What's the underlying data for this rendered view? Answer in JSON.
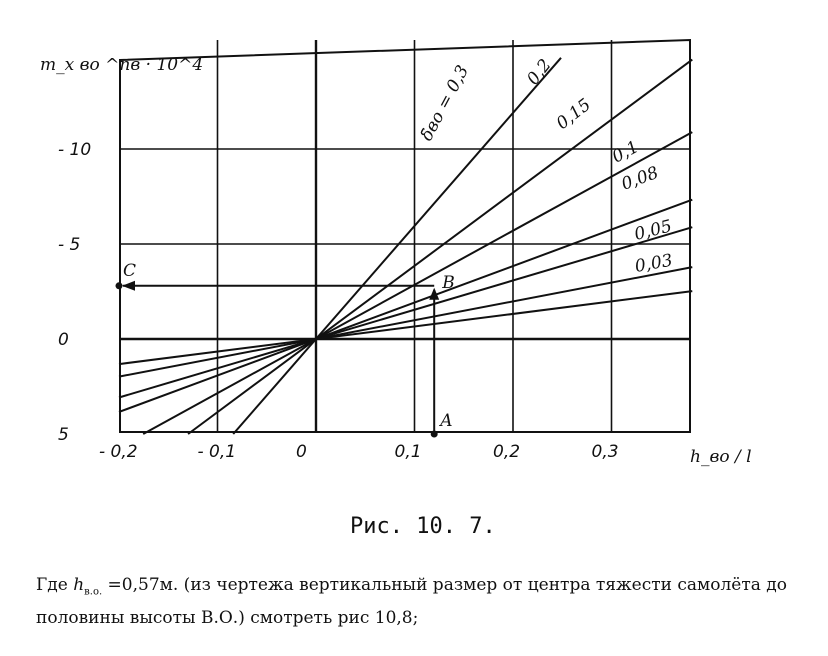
{
  "chart_data": {
    "type": "line",
    "title": "",
    "xlabel": "h_во / l",
    "ylabel": "m_x во ^пв · 10^4",
    "xlim": [
      -0.2,
      0.38
    ],
    "ylim": [
      -5,
      15
    ],
    "x_ticks": [
      -0.2,
      -0.1,
      0,
      0.1,
      0.2,
      0.3
    ],
    "x_tick_labels": [
      "- 0,2",
      "- 0,1",
      "0",
      "0,1",
      "0,2",
      "0,3"
    ],
    "y_ticks": [
      -5,
      0,
      5,
      10
    ],
    "y_tick_labels": [
      "5",
      "0",
      "- 5",
      "- 10"
    ],
    "series": [
      {
        "name": "δ̄во = 0,3",
        "slope": 59.5
      },
      {
        "name": "0,2",
        "slope": 38.5
      },
      {
        "name": "0,15",
        "slope": 28.5
      },
      {
        "name": "0,1",
        "slope": 19.2
      },
      {
        "name": "0,08",
        "slope": 15.4
      },
      {
        "name": "0,05",
        "slope": 9.9
      },
      {
        "name": "0,03",
        "slope": 6.6
      }
    ],
    "annotations": [
      {
        "text": "A",
        "x": 0.12,
        "y": -5
      },
      {
        "text": "B",
        "x": 0.12,
        "y": 2.8
      },
      {
        "text": "C",
        "x": -0.2,
        "y": 2.8
      }
    ],
    "caption": "Рис.  10. 7.",
    "grid": true
  },
  "note": {
    "prefix": "Где ",
    "h": "h",
    "sub": "в.о.",
    "rest": " =0,57м. (из чертежа вертикальный размер от центра тяжести самолёта до половины высоты В.О.)  смотреть рис 10,8;"
  }
}
